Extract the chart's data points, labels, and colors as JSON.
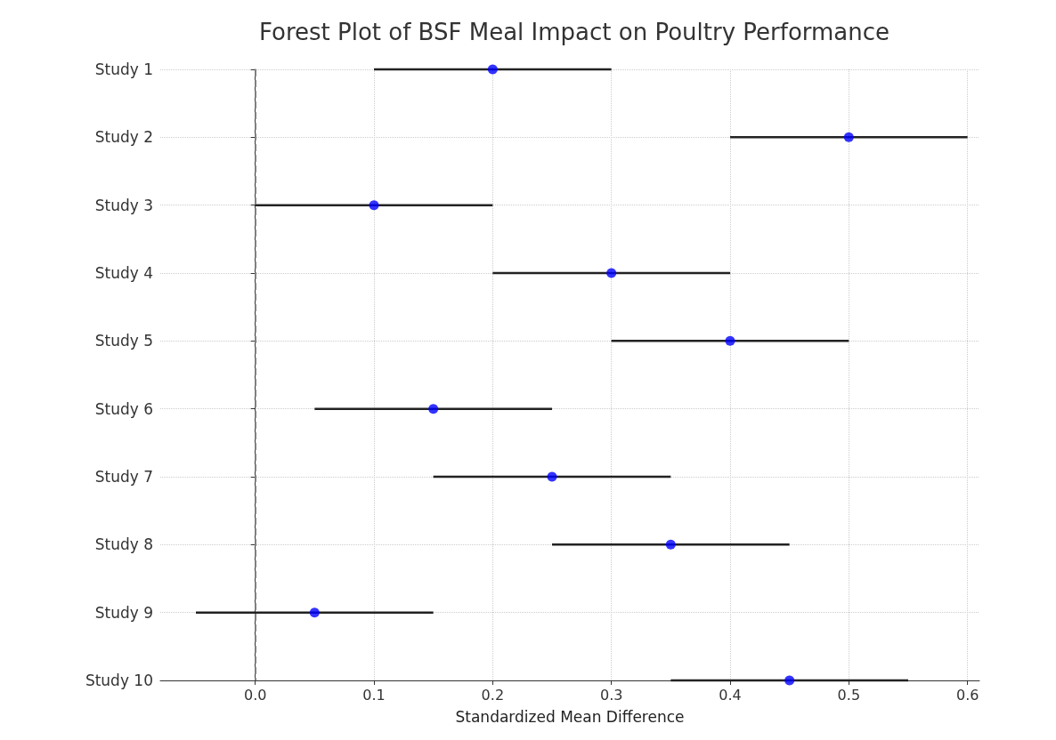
{
  "chart_data": {
    "type": "scatter",
    "title": "Forest Plot of BSF Meal Impact on Poultry Performance",
    "xlabel": "Standardized Mean Difference",
    "orientation": "horizontal",
    "categories": [
      "Study 1",
      "Study 2",
      "Study 3",
      "Study 4",
      "Study 5",
      "Study 6",
      "Study 7",
      "Study 8",
      "Study 9",
      "Study 10"
    ],
    "values": [
      0.2,
      0.5,
      0.1,
      0.3,
      0.4,
      0.15,
      0.25,
      0.35,
      0.05,
      0.45
    ],
    "errors": [
      0.1,
      0.1,
      0.1,
      0.1,
      0.1,
      0.1,
      0.1,
      0.1,
      0.1,
      0.1
    ],
    "color": "#0000ff",
    "marker": "circle",
    "xlim": [
      -0.08,
      0.61
    ],
    "xticks": [
      {
        "value": 0,
        "label": "0.0"
      },
      {
        "value": 0.1,
        "label": "0.1"
      },
      {
        "value": 0.2,
        "label": "0.2"
      },
      {
        "value": 0.3,
        "label": "0.3"
      },
      {
        "value": 0.4,
        "label": "0.4"
      },
      {
        "value": 0.5,
        "label": "0.5"
      },
      {
        "value": 0.6,
        "label": "0.6"
      }
    ],
    "ref_lines": [
      {
        "axis": "x",
        "value": 0,
        "color": "#808080",
        "line_style": "dashed"
      }
    ],
    "grid": true
  }
}
